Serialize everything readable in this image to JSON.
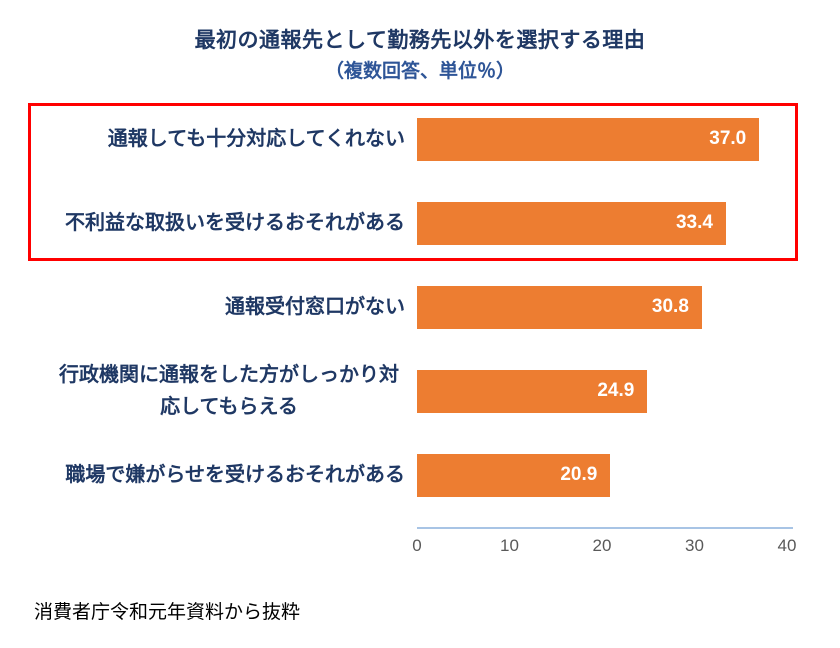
{
  "header": {
    "title": "最初の通報先として勤務先以外を選択する理由",
    "subtitle": "（複数回答、単位％）"
  },
  "chart_data": {
    "type": "bar",
    "orientation": "horizontal",
    "title": "最初の通報先として勤務先以外を選択する理由",
    "subtitle": "（複数回答、単位％）",
    "categories": [
      "通報しても十分対応してくれない",
      "不利益な取扱いを受けるおそれがある",
      "通報受付窓口がない",
      "行政機関に通報をした方がしっかり対応してもらえる",
      "職場で嫌がらせを受けるおそれがある"
    ],
    "values": [
      37.0,
      33.4,
      30.8,
      24.9,
      20.9
    ],
    "xlim": [
      0,
      40
    ],
    "xticks": [
      0,
      10,
      20,
      30,
      40
    ],
    "xlabel": "",
    "ylabel": "",
    "legend": false,
    "grid": false,
    "highlighted_rows": [
      0,
      1
    ]
  },
  "theme": {
    "title_color": "#1F3864",
    "subtitle_color": "#2E5597",
    "label_color": "#1F3864",
    "bar_color": "#ED7D31",
    "value_color": "#FFFFFF",
    "axis_line_color": "#A8C4E5",
    "tick_color": "#595959",
    "highlight_border_color": "#FF0000",
    "background": "#FFFFFF"
  },
  "footer": {
    "note": "消費者庁令和元年資料から抜粋"
  }
}
